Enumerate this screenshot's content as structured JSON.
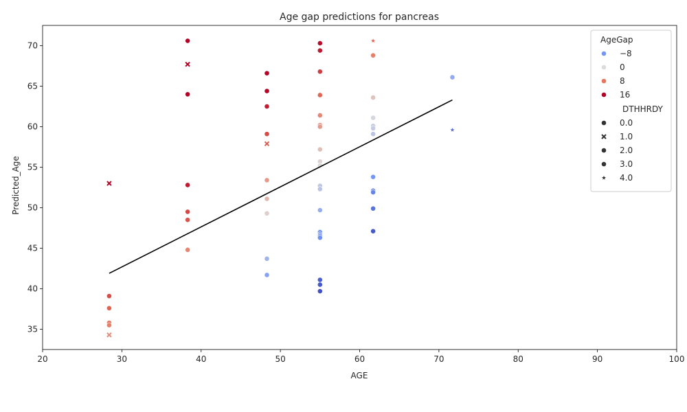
{
  "chart_data": {
    "type": "scatter",
    "title": "Age gap predictions for pancreas",
    "xlabel": "AGE",
    "ylabel": "Predicted_Age",
    "xlim": [
      20,
      100
    ],
    "ylim": [
      32.5,
      72.5
    ],
    "xticks": [
      20,
      30,
      40,
      50,
      60,
      70,
      80,
      90,
      100
    ],
    "yticks": [
      35,
      40,
      45,
      50,
      55,
      60,
      65,
      70
    ],
    "grid": false,
    "legend": {
      "placement": "top-right",
      "hue_title": "AgeGap",
      "hue_entries": [
        {
          "label": "−8",
          "color": "#7396f5"
        },
        {
          "label": "0",
          "color": "#dddcdc"
        },
        {
          "label": "8",
          "color": "#e7745b"
        },
        {
          "label": "16",
          "color": "#b40426"
        }
      ],
      "style_title": "DTHHRDY",
      "style_entries": [
        {
          "label": "0.0",
          "marker": "circle"
        },
        {
          "label": "1.0",
          "marker": "x"
        },
        {
          "label": "2.0",
          "marker": "circle"
        },
        {
          "label": "3.0",
          "marker": "circle"
        },
        {
          "label": "4.0",
          "marker": "star"
        }
      ]
    },
    "trend_line": {
      "x": [
        28.4,
        71.7
      ],
      "y": [
        41.9,
        63.3
      ],
      "color": "#000000"
    },
    "points": [
      {
        "x": 28.4,
        "y": 53.0,
        "gap": 24.6,
        "dthhrdy": 1.0
      },
      {
        "x": 28.4,
        "y": 39.1,
        "gap": 10.7,
        "dthhrdy": 0.0
      },
      {
        "x": 28.4,
        "y": 37.6,
        "gap": 9.2,
        "dthhrdy": 0.0
      },
      {
        "x": 28.4,
        "y": 35.8,
        "gap": 7.4,
        "dthhrdy": 0.0
      },
      {
        "x": 28.4,
        "y": 35.5,
        "gap": 7.1,
        "dthhrdy": 0.0
      },
      {
        "x": 28.4,
        "y": 34.3,
        "gap": 5.9,
        "dthhrdy": 1.0
      },
      {
        "x": 38.3,
        "y": 70.6,
        "gap": 32.3,
        "dthhrdy": 0.0
      },
      {
        "x": 38.3,
        "y": 67.7,
        "gap": 29.4,
        "dthhrdy": 1.0
      },
      {
        "x": 38.3,
        "y": 64.0,
        "gap": 25.7,
        "dthhrdy": 0.0
      },
      {
        "x": 38.3,
        "y": 52.8,
        "gap": 14.5,
        "dthhrdy": 0.0
      },
      {
        "x": 38.3,
        "y": 49.5,
        "gap": 11.2,
        "dthhrdy": 0.0
      },
      {
        "x": 38.3,
        "y": 48.5,
        "gap": 10.2,
        "dthhrdy": 0.0
      },
      {
        "x": 38.3,
        "y": 44.8,
        "gap": 6.5,
        "dthhrdy": 0.0
      },
      {
        "x": 48.3,
        "y": 66.6,
        "gap": 18.3,
        "dthhrdy": 0.0
      },
      {
        "x": 48.3,
        "y": 64.4,
        "gap": 16.1,
        "dthhrdy": 0.0
      },
      {
        "x": 48.3,
        "y": 62.5,
        "gap": 14.2,
        "dthhrdy": 0.0
      },
      {
        "x": 48.3,
        "y": 59.1,
        "gap": 10.8,
        "dthhrdy": 0.0
      },
      {
        "x": 48.3,
        "y": 57.9,
        "gap": 9.6,
        "dthhrdy": 1.0
      },
      {
        "x": 48.3,
        "y": 53.4,
        "gap": 5.1,
        "dthhrdy": 0.0
      },
      {
        "x": 48.3,
        "y": 51.1,
        "gap": 2.8,
        "dthhrdy": 0.0
      },
      {
        "x": 48.3,
        "y": 49.3,
        "gap": 1.0,
        "dthhrdy": 0.0
      },
      {
        "x": 48.3,
        "y": 43.7,
        "gap": -4.6,
        "dthhrdy": 0.0
      },
      {
        "x": 48.3,
        "y": 41.7,
        "gap": -6.6,
        "dthhrdy": 0.0
      },
      {
        "x": 55.0,
        "y": 70.3,
        "gap": 15.3,
        "dthhrdy": 0.0
      },
      {
        "x": 55.0,
        "y": 69.4,
        "gap": 14.4,
        "dthhrdy": 0.0
      },
      {
        "x": 55.0,
        "y": 66.8,
        "gap": 11.8,
        "dthhrdy": 0.0
      },
      {
        "x": 55.0,
        "y": 63.9,
        "gap": 8.9,
        "dthhrdy": 0.0
      },
      {
        "x": 55.0,
        "y": 61.4,
        "gap": 6.4,
        "dthhrdy": 0.0
      },
      {
        "x": 55.0,
        "y": 60.2,
        "gap": 5.2,
        "dthhrdy": 0.0
      },
      {
        "x": 55.0,
        "y": 60.0,
        "gap": 5.0,
        "dthhrdy": 0.0
      },
      {
        "x": 55.0,
        "y": 57.2,
        "gap": 2.2,
        "dthhrdy": 0.0
      },
      {
        "x": 55.0,
        "y": 55.7,
        "gap": 0.7,
        "dthhrdy": 0.0
      },
      {
        "x": 55.0,
        "y": 55.2,
        "gap": 0.2,
        "dthhrdy": 0.0
      },
      {
        "x": 55.0,
        "y": 52.7,
        "gap": -2.3,
        "dthhrdy": 0.0
      },
      {
        "x": 55.0,
        "y": 52.3,
        "gap": -2.7,
        "dthhrdy": 0.0
      },
      {
        "x": 55.0,
        "y": 49.7,
        "gap": -5.3,
        "dthhrdy": 0.0
      },
      {
        "x": 55.0,
        "y": 47.0,
        "gap": -8.0,
        "dthhrdy": 0.0
      },
      {
        "x": 55.0,
        "y": 46.7,
        "gap": -8.3,
        "dthhrdy": 0.0
      },
      {
        "x": 55.0,
        "y": 46.5,
        "gap": -8.5,
        "dthhrdy": 0.0
      },
      {
        "x": 55.0,
        "y": 46.3,
        "gap": -8.7,
        "dthhrdy": 0.0
      },
      {
        "x": 55.0,
        "y": 41.1,
        "gap": -13.9,
        "dthhrdy": 0.0
      },
      {
        "x": 55.0,
        "y": 40.5,
        "gap": -14.5,
        "dthhrdy": 0.0
      },
      {
        "x": 55.0,
        "y": 39.7,
        "gap": -15.3,
        "dthhrdy": 0.0
      },
      {
        "x": 61.7,
        "y": 70.6,
        "gap": 8.9,
        "dthhrdy": 4.0
      },
      {
        "x": 61.7,
        "y": 68.8,
        "gap": 7.1,
        "dthhrdy": 0.0
      },
      {
        "x": 61.7,
        "y": 63.6,
        "gap": 1.9,
        "dthhrdy": 0.0
      },
      {
        "x": 61.7,
        "y": 61.1,
        "gap": -0.6,
        "dthhrdy": 0.0
      },
      {
        "x": 61.7,
        "y": 60.1,
        "gap": -1.6,
        "dthhrdy": 0.0
      },
      {
        "x": 61.7,
        "y": 59.8,
        "gap": -1.9,
        "dthhrdy": 0.0
      },
      {
        "x": 61.7,
        "y": 59.1,
        "gap": -2.6,
        "dthhrdy": 0.0
      },
      {
        "x": 61.7,
        "y": 53.8,
        "gap": -7.9,
        "dthhrdy": 0.0
      },
      {
        "x": 61.7,
        "y": 52.1,
        "gap": -9.6,
        "dthhrdy": 0.0
      },
      {
        "x": 61.7,
        "y": 51.9,
        "gap": -9.8,
        "dthhrdy": 0.0
      },
      {
        "x": 61.7,
        "y": 49.9,
        "gap": -11.8,
        "dthhrdy": 0.0
      },
      {
        "x": 61.7,
        "y": 47.1,
        "gap": -14.6,
        "dthhrdy": 0.0
      },
      {
        "x": 71.7,
        "y": 66.1,
        "gap": -5.6,
        "dthhrdy": 0.0
      },
      {
        "x": 71.7,
        "y": 59.6,
        "gap": -12.1,
        "dthhrdy": 4.0
      }
    ]
  }
}
